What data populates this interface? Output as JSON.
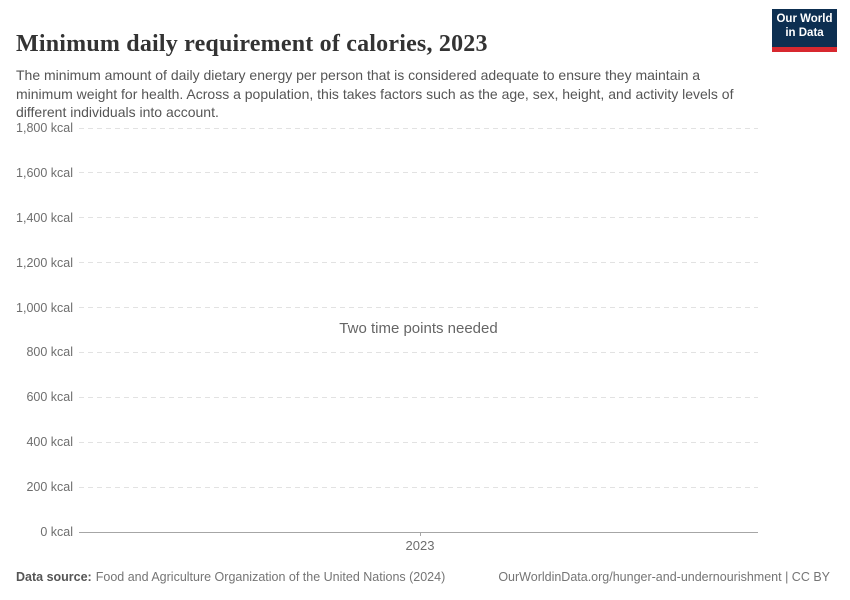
{
  "header": {
    "title": "Minimum daily requirement of calories, 2023",
    "subtitle": "The minimum amount of daily dietary energy per person that is considered adequate to ensure they maintain a minimum weight for health. Across a population, this takes factors such as the age, sex, height, and activity levels of different individuals into account.",
    "logo": {
      "line1": "Our World",
      "line2": "in Data",
      "bg_color": "#0d2f51",
      "bar_color": "#d7282f"
    }
  },
  "chart_data": {
    "type": "line",
    "title": "Minimum daily requirement of calories, 2023",
    "series": [],
    "message": "Two time points needed",
    "xlabel": "",
    "ylabel": "",
    "ylim": [
      0,
      1800
    ],
    "ytick_interval": 200,
    "yticks": [
      {
        "value": 1800,
        "label": "1,800 kcal"
      },
      {
        "value": 1600,
        "label": "1,600 kcal"
      },
      {
        "value": 1400,
        "label": "1,400 kcal"
      },
      {
        "value": 1200,
        "label": "1,200 kcal"
      },
      {
        "value": 1000,
        "label": "1,000 kcal"
      },
      {
        "value": 800,
        "label": "800 kcal"
      },
      {
        "value": 600,
        "label": "600 kcal"
      },
      {
        "value": 400,
        "label": "400 kcal"
      },
      {
        "value": 200,
        "label": "200 kcal"
      },
      {
        "value": 0,
        "label": "0 kcal"
      }
    ],
    "xticks": [
      {
        "value": 2023,
        "label": "2023"
      }
    ],
    "grid": "horizontal-dashed",
    "legend": "none",
    "colors": {
      "gridline": "#e2e2e2",
      "axis": "#a6a6a6",
      "tick_label": "#6e6e6e",
      "message": "#666666"
    }
  },
  "footer": {
    "datasource_label": "Data source:",
    "datasource_value": "Food and Agriculture Organization of the United Nations (2024)",
    "link": "OurWorldinData.org/hunger-and-undernourishment",
    "separator": " | ",
    "license": "CC BY"
  }
}
